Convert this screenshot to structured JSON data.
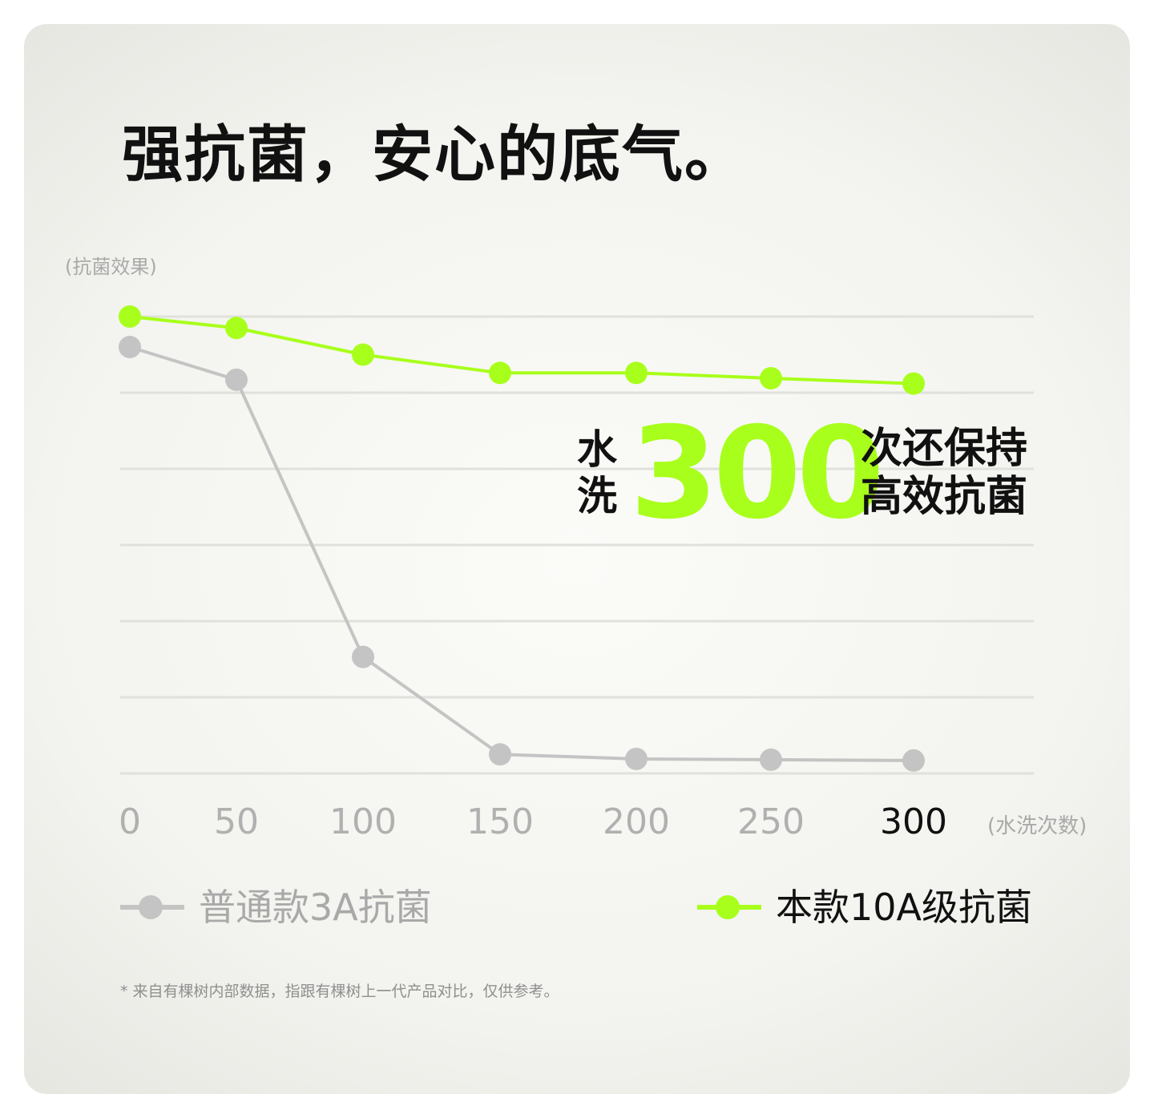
{
  "title": "强抗菌，安心的底气。",
  "y_axis_label": "(抗菌效果)",
  "x_axis_label": "(水洗次数)",
  "highlight": {
    "prefix_line1": "水",
    "prefix_line2": "洗",
    "number": "300",
    "text_line1": "次还保持",
    "text_line2": "高效抗菌"
  },
  "legend": {
    "standard": "普通款3A抗菌",
    "current": "本款10A级抗菌"
  },
  "footnote": "* 来自有棵树内部数据，指跟有棵树上一代产品对比，仅供参考。",
  "colors": {
    "accent": "#a8ff1b",
    "standard_series": "#c4c4c4",
    "text_dark": "#111111",
    "text_muted": "#a9a9a9",
    "grid": "#e0e0dc"
  },
  "chart_data": {
    "type": "line",
    "x": [
      0,
      50,
      100,
      150,
      200,
      250,
      300
    ],
    "x_tick_labels": [
      "0",
      "50",
      "100",
      "150",
      "200",
      "250",
      "300"
    ],
    "highlighted_tick": "300",
    "xlabel": "(水洗次数)",
    "ylabel": "(抗菌效果)",
    "ylim": [
      0,
      6
    ],
    "grid": true,
    "y_tick_labels": false,
    "legend_position": "bottom",
    "series": [
      {
        "name": "普通款3A抗菌",
        "color": "#c4c4c4",
        "values": [
          5.6,
          5.17,
          1.53,
          0.25,
          0.19,
          0.18,
          0.17
        ]
      },
      {
        "name": "本款10A级抗菌",
        "color": "#a8ff1b",
        "values": [
          6.0,
          5.85,
          5.5,
          5.26,
          5.26,
          5.19,
          5.12
        ]
      }
    ]
  }
}
